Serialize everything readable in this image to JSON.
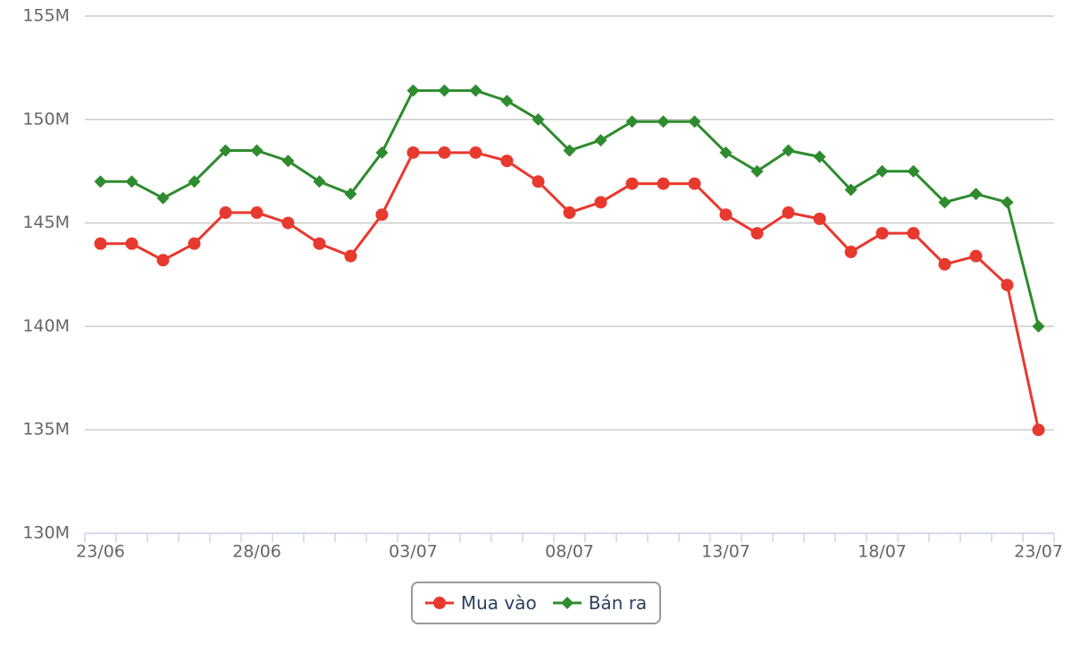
{
  "chart_data": {
    "type": "line",
    "categories": [
      "23/06",
      null,
      null,
      null,
      null,
      "28/06",
      null,
      null,
      null,
      null,
      "03/07",
      null,
      null,
      null,
      null,
      "08/07",
      null,
      null,
      null,
      null,
      "13/07",
      null,
      null,
      null,
      null,
      "18/07",
      null,
      null,
      null,
      null,
      "23/07"
    ],
    "series": [
      {
        "name": "Mua vào",
        "color": "#e8392f",
        "marker": "circle",
        "values": [
          144.0,
          144.0,
          143.2,
          144.0,
          145.5,
          145.5,
          145.0,
          144.0,
          143.4,
          145.4,
          148.4,
          148.4,
          148.4,
          148.0,
          147.0,
          145.5,
          146.0,
          146.9,
          146.9,
          146.9,
          145.4,
          144.5,
          145.5,
          145.2,
          143.6,
          144.5,
          144.5,
          143.0,
          143.4,
          142.0,
          135.0
        ]
      },
      {
        "name": "Bán ra",
        "color": "#2e8b2e",
        "marker": "diamond",
        "values": [
          147.0,
          147.0,
          146.2,
          147.0,
          148.5,
          148.5,
          148.0,
          147.0,
          146.4,
          148.4,
          151.4,
          151.4,
          151.4,
          150.9,
          150.0,
          148.5,
          149.0,
          149.9,
          149.9,
          149.9,
          148.4,
          147.5,
          148.5,
          148.2,
          146.6,
          147.5,
          147.5,
          146.0,
          146.4,
          146.0,
          140.0
        ]
      }
    ],
    "ylim": [
      130,
      155
    ],
    "yticks": [
      {
        "value": 130,
        "label": "130M"
      },
      {
        "value": 135,
        "label": "135M"
      },
      {
        "value": 140,
        "label": "140M"
      },
      {
        "value": 145,
        "label": "145M"
      },
      {
        "value": 150,
        "label": "150M"
      },
      {
        "value": 155,
        "label": "155M"
      }
    ],
    "grid": true
  }
}
